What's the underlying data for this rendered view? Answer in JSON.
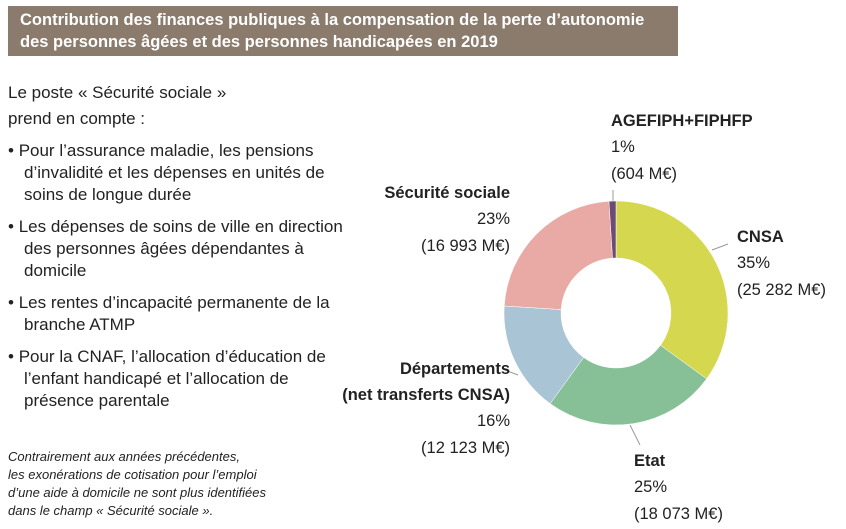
{
  "header": {
    "title": "Contribution des finances publiques à la compensation de la perte d’autonomie\ndes personnes âgées et des personnes handicapées en 2019"
  },
  "intro": "Le poste « Sécurité sociale » prend en compte :",
  "bullets": [
    "Pour l’assurance maladie, les pensions d’invalidité et les dépenses en unités de soins de longue durée",
    "Les dépenses de soins de ville en direction des personnes âgées dépendantes à domicile",
    "Les rentes d’incapacité permanente de la branche ATMP",
    "Pour la CNAF, l’allocation d’éducation de l’enfant handicapé et l’allocation de présence parentale"
  ],
  "note": "Contrairement aux années précédentes,\nles exonérations de cotisation pour l’emploi\nd’une aide à domicile ne sont plus identifiées\ndans le champ « Sécurité sociale ».",
  "chart_data": {
    "type": "donut",
    "categories": [
      "CNSA",
      "Etat",
      "Départements\n(net transferts CNSA)",
      "Sécurité sociale",
      "AGEFIPH+FIPHFP"
    ],
    "values": [
      35,
      25,
      16,
      23,
      1
    ],
    "value_labels": [
      "35%",
      "25%",
      "16%",
      "23%",
      "1%"
    ],
    "amounts": [
      25282,
      18073,
      12123,
      16993,
      604
    ],
    "amount_labels": [
      "(25 282 M€)",
      "(18 073 M€)",
      "(12 123 M€)",
      "(16 993 M€)",
      "(604 M€)"
    ],
    "colors": [
      "#d5d84e",
      "#87c097",
      "#a9c5d5",
      "#e9aaa6",
      "#6e4b72"
    ]
  }
}
